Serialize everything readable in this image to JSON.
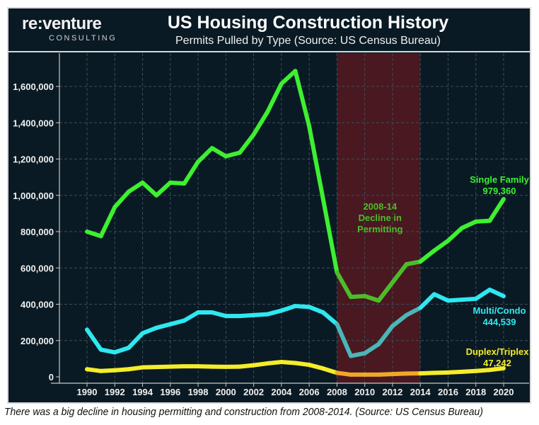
{
  "logo": {
    "main": "re:venture",
    "sub": "CONSULTING"
  },
  "caption": "There was a big decline in housing permitting and construction from 2008-2014. (Source: US Census Bureau)",
  "colors": {
    "background": "#0a1a24",
    "single_family": "#3df030",
    "multi_condo": "#2ee8f0",
    "duplex_triplex": "#f5ec2a",
    "shade": "#4a1820",
    "single_family_shaded": "#4cbd2a",
    "multi_condo_shaded": "#4ab6b8",
    "duplex_triplex_shaded": "#f0a82a"
  },
  "chart_data": {
    "type": "line",
    "title": "US Housing Construction History",
    "subtitle": "Permits Pulled by Type (Source: US Census Bureau)",
    "xlabel": "",
    "ylabel": "",
    "xlim": [
      1988,
      2021
    ],
    "ylim": [
      0,
      1800000
    ],
    "grid": true,
    "x": [
      1990,
      1991,
      1992,
      1993,
      1994,
      1995,
      1996,
      1997,
      1998,
      1999,
      2000,
      2001,
      2002,
      2003,
      2004,
      2005,
      2006,
      2007,
      2008,
      2009,
      2010,
      2011,
      2012,
      2013,
      2014,
      2015,
      2016,
      2017,
      2018,
      2019,
      2020
    ],
    "x_ticks": [
      "1990",
      "1992",
      "1994",
      "1996",
      "1998",
      "2000",
      "2002",
      "2004",
      "2006",
      "2008",
      "2010",
      "2012",
      "2014",
      "2016",
      "2018",
      "2020"
    ],
    "y_ticks": [
      {
        "value": 0,
        "label": "0"
      },
      {
        "value": 200000,
        "label": "200,000"
      },
      {
        "value": 400000,
        "label": "400,000"
      },
      {
        "value": 600000,
        "label": "600,000"
      },
      {
        "value": 800000,
        "label": "800,000"
      },
      {
        "value": 1000000,
        "label": "1,000,000"
      },
      {
        "value": 1200000,
        "label": "1,200,000"
      },
      {
        "value": 1400000,
        "label": "1,400,000"
      },
      {
        "value": 1600000,
        "label": "1,600,000"
      }
    ],
    "series": [
      {
        "name": "Single Family",
        "key": "single_family",
        "values": [
          800000,
          775000,
          935000,
          1020000,
          1070000,
          1000000,
          1070000,
          1065000,
          1185000,
          1260000,
          1215000,
          1235000,
          1335000,
          1460000,
          1615000,
          1685000,
          1380000,
          980000,
          575000,
          440000,
          445000,
          420000,
          520000,
          620000,
          635000,
          695000,
          750000,
          820000,
          855000,
          860000,
          979360
        ]
      },
      {
        "name": "Multi/Condo",
        "key": "multi_condo",
        "values": [
          260000,
          150000,
          135000,
          160000,
          240000,
          270000,
          290000,
          310000,
          355000,
          355000,
          335000,
          335000,
          340000,
          345000,
          365000,
          390000,
          385000,
          355000,
          290000,
          115000,
          130000,
          180000,
          280000,
          340000,
          380000,
          455000,
          420000,
          425000,
          430000,
          480000,
          444539
        ]
      },
      {
        "name": "Duplex/Triplex",
        "key": "duplex_triplex",
        "values": [
          42000,
          32000,
          36000,
          42000,
          52000,
          54000,
          56000,
          58000,
          58000,
          56000,
          55000,
          56000,
          64000,
          74000,
          82000,
          76000,
          66000,
          46000,
          22000,
          12000,
          12000,
          12000,
          15000,
          18000,
          19000,
          22000,
          24000,
          28000,
          32000,
          38000,
          47242
        ]
      }
    ],
    "shaded_region": {
      "from": 2008,
      "to": 2014,
      "label_lines": [
        "2008-14",
        "Decline in",
        "Permitting"
      ]
    },
    "annotations": [
      {
        "series": "single_family",
        "lines": [
          "Single Family",
          "979,360"
        ]
      },
      {
        "series": "multi_condo",
        "lines": [
          "Multi/Condo",
          "444,539"
        ]
      },
      {
        "series": "duplex_triplex",
        "lines": [
          "Duplex/Triplex",
          "47,242"
        ]
      }
    ]
  }
}
